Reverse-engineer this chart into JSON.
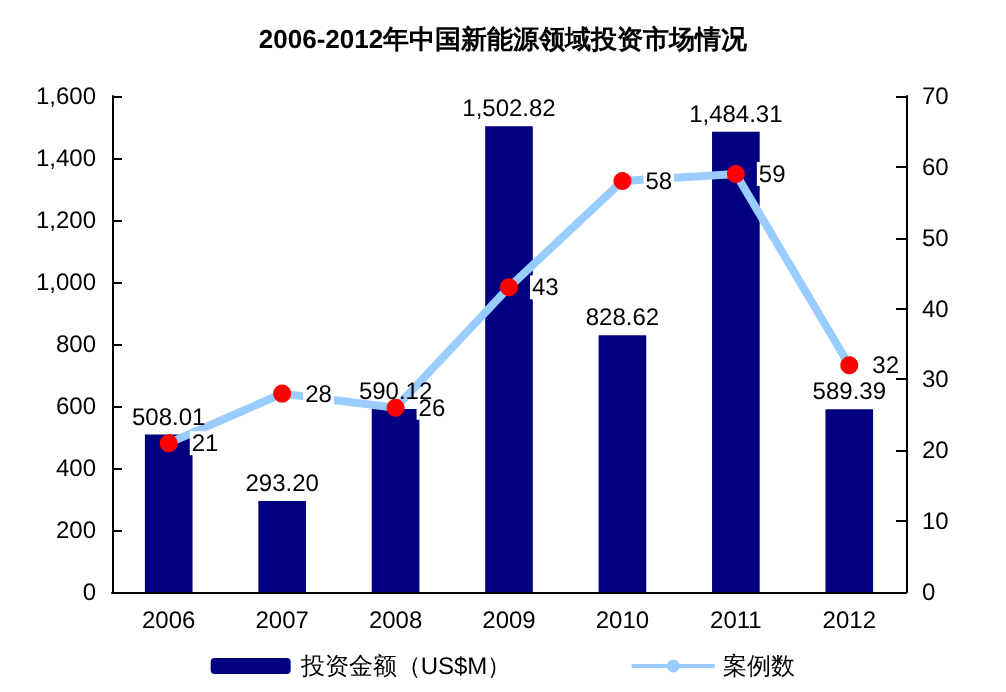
{
  "chart_data": {
    "type": "bar",
    "title": "2006-2012年中国新能源领域投资市场情况",
    "categories": [
      "2006",
      "2007",
      "2008",
      "2009",
      "2010",
      "2011",
      "2012"
    ],
    "series": [
      {
        "name": "投资金额（US$M）",
        "type": "bar",
        "color": "#000080",
        "values": [
          508.01,
          293.2,
          590.12,
          1502.82,
          828.62,
          1484.31,
          589.39
        ],
        "value_labels": [
          "508.01",
          "293.20",
          "590.12",
          "1,502.82",
          "828.62",
          "1,484.31",
          "589.39"
        ]
      },
      {
        "name": "案例数",
        "type": "line",
        "axis": "y2",
        "color": "#99ccff",
        "colors": [
          "#ff0000",
          "#ff0000",
          "#ff0000",
          "#ff0000",
          "#ff0000",
          "#ff0000",
          "#ff0000"
        ],
        "values": [
          21,
          28,
          26,
          43,
          58,
          59,
          32
        ],
        "value_labels": [
          "21",
          "28",
          "26",
          "43",
          "58",
          "59",
          "32"
        ]
      }
    ],
    "ylim": [
      0,
      1600
    ],
    "yticks": [
      0,
      200,
      400,
      600,
      800,
      {
        "value": 1000,
        "label": "1,000"
      },
      {
        "value": 1200,
        "label": "1,200"
      },
      {
        "value": 1400,
        "label": "1,400"
      },
      {
        "value": 1600,
        "label": "1,600"
      }
    ],
    "y2lim": [
      0,
      70
    ],
    "y2ticks": [
      0,
      10,
      20,
      30,
      40,
      50,
      60,
      70
    ],
    "grid": false,
    "legend": "bottom",
    "marker": "circle",
    "line_style": "solid"
  }
}
